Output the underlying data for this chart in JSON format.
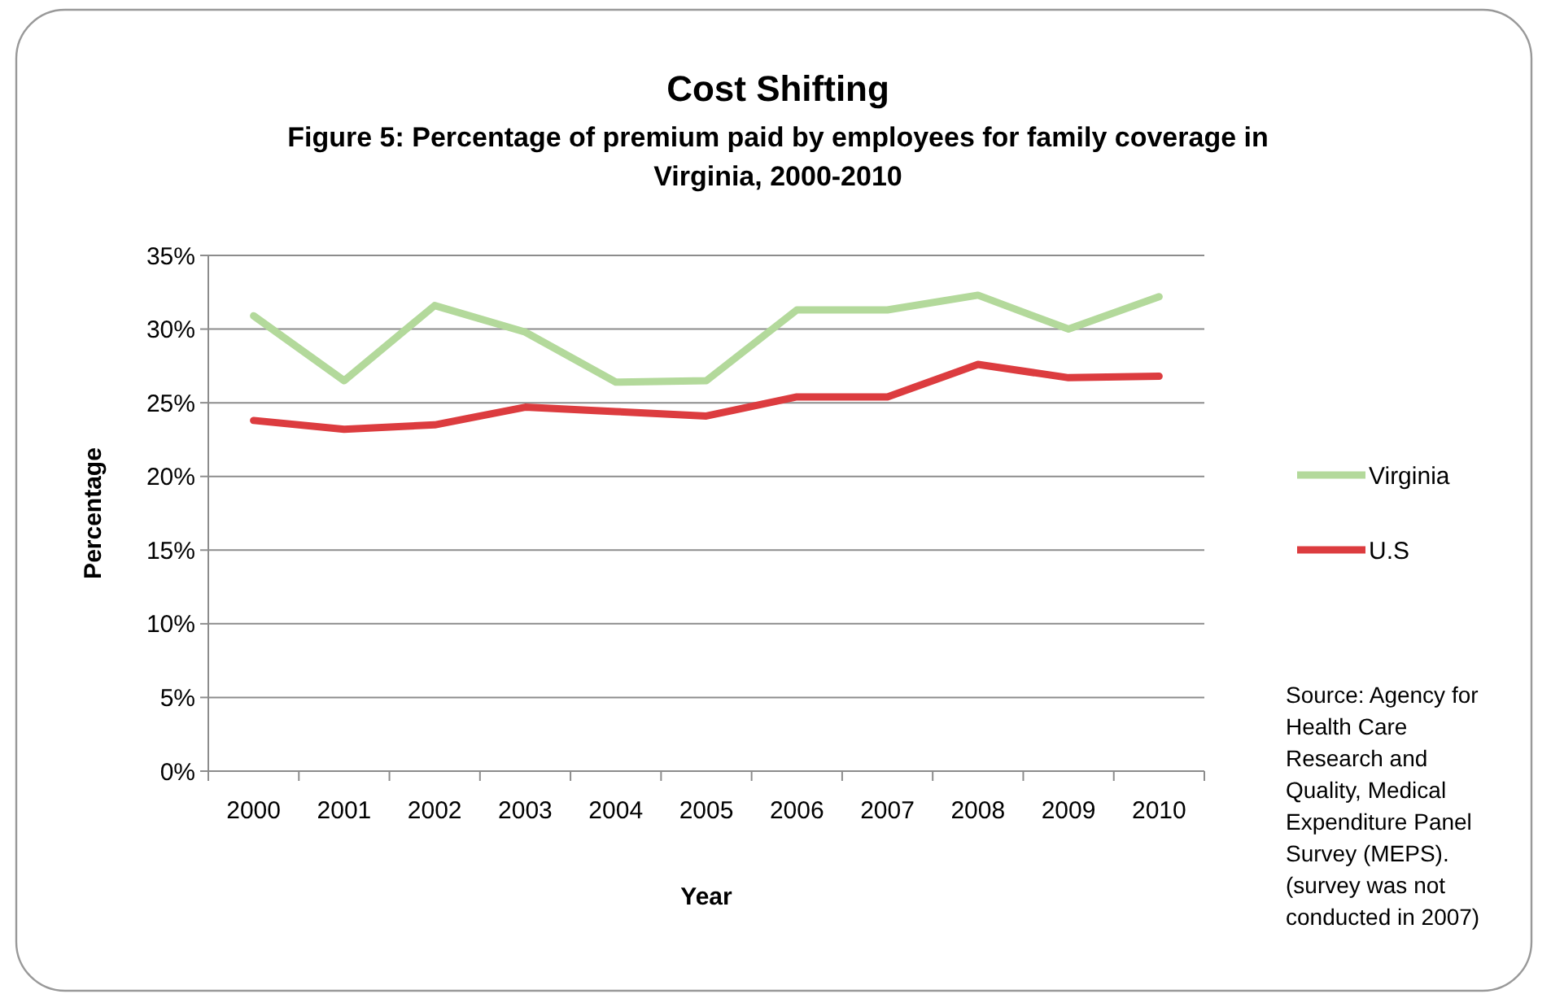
{
  "chart_data": {
    "type": "line",
    "title": "Cost Shifting",
    "subtitle": "Figure 5: Percentage of premium paid by employees for family coverage in Virginia, 2000-2010",
    "xlabel": "Year",
    "ylabel": "Percentage",
    "categories": [
      "2000",
      "2001",
      "2002",
      "2003",
      "2004",
      "2005",
      "2006",
      "2007",
      "2008",
      "2009",
      "2010"
    ],
    "series": [
      {
        "name": "Virginia",
        "color": "#b3d99b",
        "values": [
          30.9,
          26.5,
          31.6,
          29.8,
          26.4,
          26.5,
          31.3,
          31.3,
          32.3,
          30.0,
          32.2
        ]
      },
      {
        "name": "U.S",
        "color": "#dc3c3f",
        "values": [
          23.8,
          23.2,
          23.5,
          24.7,
          24.4,
          24.1,
          25.4,
          25.4,
          27.6,
          26.7,
          26.8
        ]
      }
    ],
    "ylim": [
      0,
      35
    ],
    "yticks": [
      {
        "value": 0,
        "label": "0%"
      },
      {
        "value": 5,
        "label": "5%"
      },
      {
        "value": 10,
        "label": "10%"
      },
      {
        "value": 15,
        "label": "15%"
      },
      {
        "value": 20,
        "label": "20%"
      },
      {
        "value": 25,
        "label": "25%"
      },
      {
        "value": 30,
        "label": "30%"
      },
      {
        "value": 35,
        "label": "35%"
      }
    ],
    "grid": "y",
    "legend": "right",
    "marker": "none",
    "line_style": "solid",
    "annotations": [
      "Source: Agency for Health Care Research and Quality, Medical Expenditure Panel Survey (MEPS). (survey was not conducted in 2007)"
    ]
  }
}
